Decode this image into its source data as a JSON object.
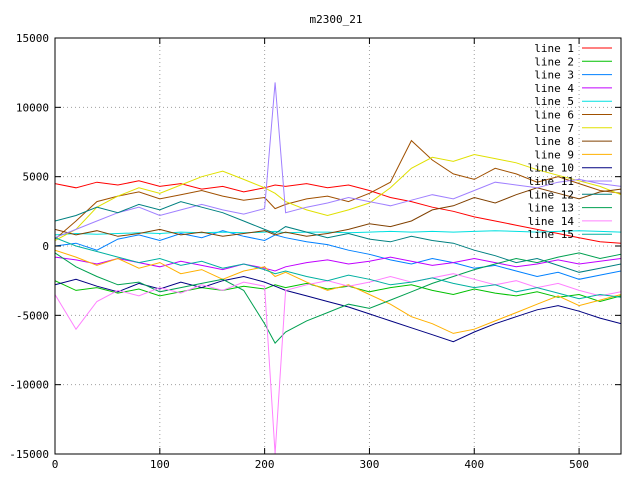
{
  "chart_data": {
    "type": "line",
    "title": "m2300_21",
    "xlabel": "",
    "ylabel": "",
    "xlim": [
      0,
      540
    ],
    "ylim": [
      -15000,
      15000
    ],
    "x_ticks": [
      0,
      100,
      200,
      300,
      400,
      500
    ],
    "y_ticks": [
      -15000,
      -10000,
      -5000,
      0,
      5000,
      10000,
      15000
    ],
    "grid": true,
    "legend_position": "top-right",
    "x": [
      0,
      20,
      40,
      60,
      80,
      100,
      120,
      140,
      160,
      180,
      200,
      210,
      220,
      240,
      260,
      280,
      300,
      320,
      340,
      360,
      380,
      400,
      420,
      440,
      460,
      480,
      500,
      520,
      540
    ],
    "series": [
      {
        "name": "line 1",
        "color": "#ff0000",
        "values": [
          4500,
          4200,
          4600,
          4400,
          4700,
          4300,
          4500,
          4100,
          4300,
          3900,
          4200,
          4400,
          4300,
          4500,
          4200,
          4400,
          4000,
          3500,
          3200,
          2800,
          2500,
          2100,
          1800,
          1500,
          1200,
          900,
          600,
          300,
          200
        ]
      },
      {
        "name": "line 2",
        "color": "#00c000",
        "values": [
          -2500,
          -3200,
          -3000,
          -3400,
          -3100,
          -3600,
          -3300,
          -3000,
          -3200,
          -2900,
          -3100,
          -2800,
          -3000,
          -2700,
          -3100,
          -2900,
          -3300,
          -3000,
          -2800,
          -3200,
          -3500,
          -3100,
          -3400,
          -3600,
          -3300,
          -3700,
          -3500,
          -4000,
          -3600
        ]
      },
      {
        "name": "line 3",
        "color": "#0080ff",
        "values": [
          0,
          200,
          -300,
          500,
          800,
          400,
          900,
          600,
          1100,
          700,
          400,
          800,
          600,
          300,
          100,
          -300,
          -600,
          -1000,
          -1300,
          -900,
          -1200,
          -1600,
          -1400,
          -1800,
          -2200,
          -1900,
          -2400,
          -2100,
          -1800
        ]
      },
      {
        "name": "line 4",
        "color": "#c000ff",
        "values": [
          -800,
          -1000,
          -1300,
          -900,
          -1200,
          -1500,
          -1100,
          -1400,
          -1700,
          -1300,
          -1600,
          -1800,
          -1500,
          -1200,
          -1000,
          -1300,
          -1100,
          -800,
          -1100,
          -1400,
          -1200,
          -900,
          -1200,
          -1500,
          -1300,
          -1000,
          -1300,
          -1100,
          -900
        ]
      },
      {
        "name": "line 5",
        "color": "#00e0e0",
        "values": [
          800,
          900,
          850,
          900,
          950,
          900,
          1000,
          950,
          1000,
          950,
          1000,
          1050,
          950,
          1000,
          1000,
          950,
          1000,
          1050,
          1000,
          1050,
          1000,
          1050,
          1100,
          1050,
          1000,
          1050,
          1100,
          1050,
          1000
        ]
      },
      {
        "name": "line 6",
        "color": "#a05000",
        "values": [
          500,
          1800,
          3200,
          3600,
          3900,
          3400,
          3700,
          4000,
          3600,
          3300,
          3500,
          2700,
          3000,
          3400,
          3600,
          3200,
          3800,
          4600,
          7600,
          6200,
          5200,
          4800,
          5600,
          5200,
          4600,
          5000,
          4500,
          4000,
          3800
        ]
      },
      {
        "name": "line 7",
        "color": "#e0e000",
        "values": [
          400,
          1200,
          2800,
          3600,
          4200,
          3800,
          4400,
          5000,
          5400,
          4800,
          4200,
          3800,
          3200,
          2600,
          2200,
          2600,
          3100,
          4200,
          5600,
          6400,
          6100,
          6600,
          6300,
          6000,
          5500,
          5100,
          4700,
          4300,
          3700
        ]
      },
      {
        "name": "line 8",
        "color": "#804000",
        "values": [
          1200,
          800,
          1100,
          700,
          900,
          1200,
          800,
          1000,
          700,
          900,
          1100,
          800,
          1000,
          700,
          900,
          1200,
          1600,
          1400,
          1800,
          2600,
          2900,
          3500,
          3100,
          3700,
          4200,
          3800,
          3400,
          3900,
          4100
        ]
      },
      {
        "name": "line 9",
        "color": "#ffb000",
        "values": [
          -300,
          -800,
          -1400,
          -900,
          -1600,
          -1200,
          -2000,
          -1700,
          -2400,
          -1800,
          -1500,
          -2200,
          -1900,
          -2600,
          -3200,
          -2800,
          -3500,
          -4200,
          -5100,
          -5600,
          -6300,
          -6000,
          -5400,
          -4800,
          -4200,
          -3600,
          -4300,
          -3900,
          -3500
        ]
      },
      {
        "name": "line 10",
        "color": "#000080",
        "values": [
          -2800,
          -2400,
          -2900,
          -3300,
          -2700,
          -3100,
          -2600,
          -3000,
          -2500,
          -2200,
          -2600,
          -2900,
          -3200,
          -3600,
          -4000,
          -4400,
          -4900,
          -5400,
          -5900,
          -6400,
          -6900,
          -6200,
          -5600,
          -5100,
          -4600,
          -4300,
          -4700,
          -5200,
          -5600
        ]
      },
      {
        "name": "line 11",
        "color": "#a080ff",
        "values": [
          600,
          1200,
          1800,
          2400,
          2800,
          2200,
          2600,
          3000,
          2600,
          2300,
          2700,
          11800,
          2400,
          2800,
          3100,
          3500,
          3200,
          2900,
          3300,
          3700,
          3400,
          4000,
          4600,
          4400,
          4200,
          4600,
          4800,
          4500,
          4300
        ]
      },
      {
        "name": "line 12",
        "color": "#008080",
        "values": [
          1800,
          2200,
          2800,
          2400,
          3000,
          2600,
          3200,
          2800,
          2400,
          1800,
          1200,
          900,
          1400,
          1000,
          600,
          900,
          500,
          300,
          700,
          400,
          200,
          -300,
          -700,
          -1200,
          -900,
          -1400,
          -1900,
          -1600,
          -1300
        ]
      },
      {
        "name": "line 13",
        "color": "#00a050",
        "values": [
          -500,
          -1500,
          -2200,
          -2800,
          -2600,
          -3300,
          -3000,
          -2700,
          -2400,
          -3200,
          -5600,
          -7000,
          -6200,
          -5400,
          -4800,
          -4200,
          -4500,
          -3900,
          -3300,
          -2700,
          -2200,
          -1700,
          -1300,
          -900,
          -1200,
          -800,
          -500,
          -900,
          -600
        ]
      },
      {
        "name": "line 14",
        "color": "#ff80ff",
        "values": [
          -3500,
          -6000,
          -4000,
          -3200,
          -3600,
          -3000,
          -3400,
          -2800,
          -3200,
          -2600,
          -2900,
          -15000,
          -3200,
          -2800,
          -2500,
          -2900,
          -2600,
          -2200,
          -2600,
          -2300,
          -2000,
          -2400,
          -2800,
          -2500,
          -3000,
          -2700,
          -3200,
          -3600,
          -3300
        ]
      },
      {
        "name": "line 15",
        "color": "#00b0a0",
        "values": [
          600,
          0,
          -400,
          -800,
          -1200,
          -900,
          -1400,
          -1100,
          -1600,
          -1300,
          -1700,
          -2000,
          -1800,
          -2200,
          -2500,
          -2100,
          -2400,
          -2800,
          -2600,
          -2300,
          -2700,
          -3000,
          -2800,
          -3300,
          -3000,
          -3400,
          -3800,
          -3500,
          -3700
        ]
      }
    ]
  }
}
